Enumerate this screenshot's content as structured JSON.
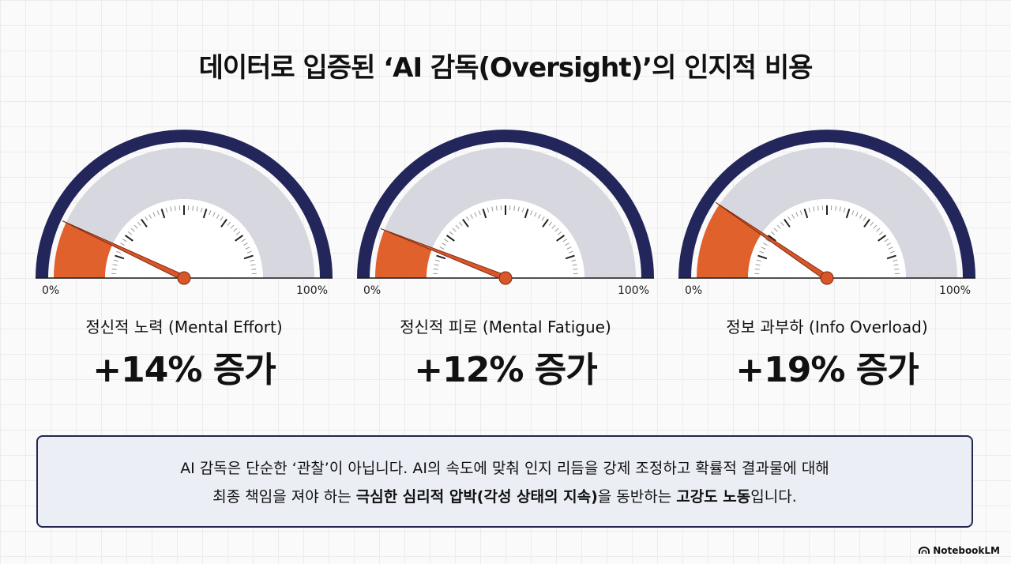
{
  "title": "데이터로 입증된 ‘AI 감독(Oversight)’의 인지적 비용",
  "gauges": [
    {
      "label": "정신적 노력 (Mental Effort)",
      "value_text": "+14% 증가",
      "level_percent": 14,
      "min_label": "0%",
      "max_label": "100%"
    },
    {
      "label": "정신적 피로 (Mental Fatigue)",
      "value_text": "+12% 증가",
      "level_percent": 12,
      "min_label": "0%",
      "max_label": "100%"
    },
    {
      "label": "정보 과부하 (Info Overload)",
      "value_text": "+19% 증가",
      "level_percent": 19,
      "min_label": "0%",
      "max_label": "100%"
    }
  ],
  "note": {
    "line1": "AI 감독은 단순한 ‘관찰’이 아닙니다. AI의 속도에 맞춰 인지 리듬을 강제 조정하고 확률적 결과물에 대해",
    "line2_a": "최종 책임을 져야 하는 ",
    "line2_b": "극심한 심리적 압박(각성 상태의 지속)",
    "line2_c": "을 동반하는 ",
    "line2_d": "고강도 노동",
    "line2_e": "입니다."
  },
  "brand": "NotebookLM",
  "colors": {
    "outer_ring": "#23265a",
    "fill": "#e0612b",
    "track": "#d6d7df",
    "needle": "#d9562a"
  }
}
